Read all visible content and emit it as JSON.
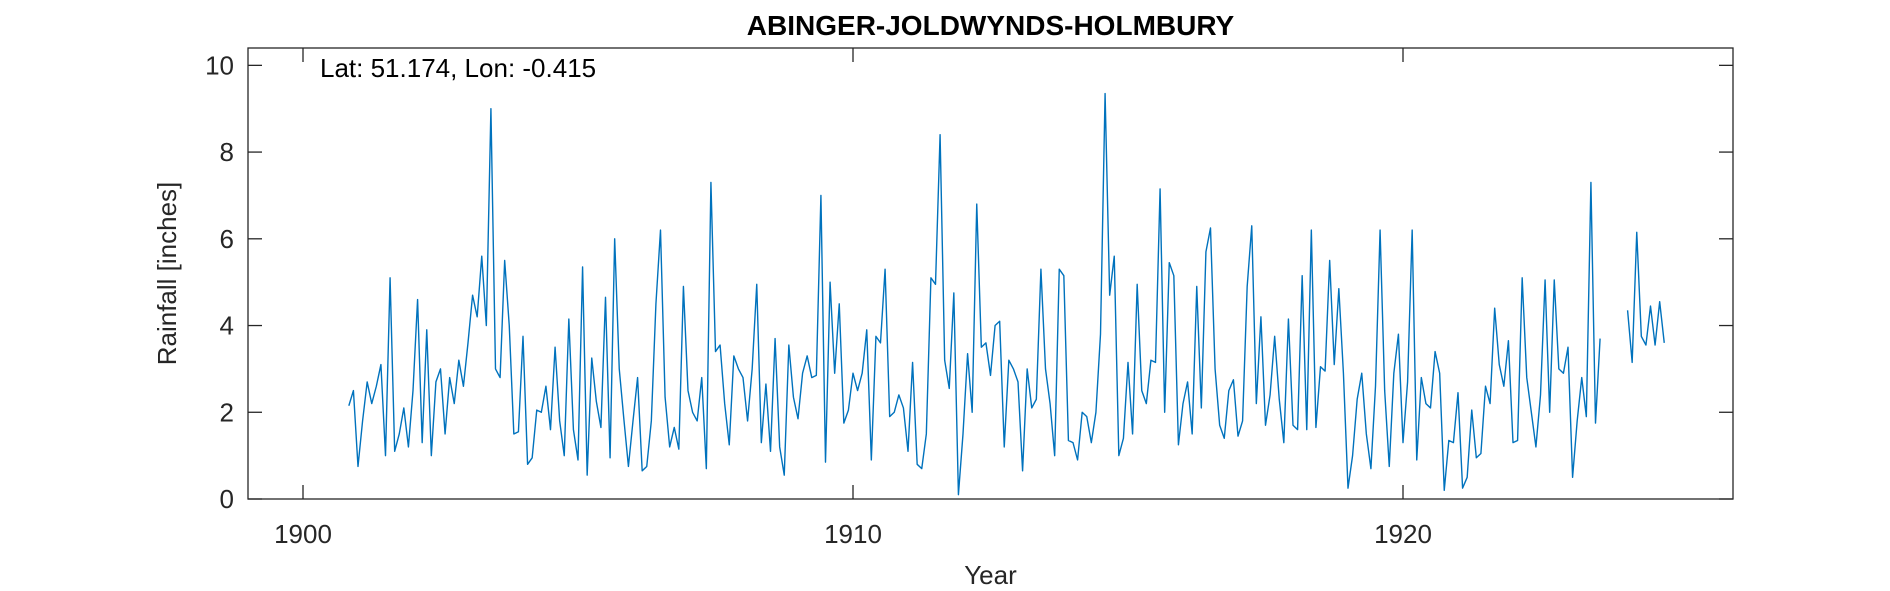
{
  "chart_data": {
    "type": "line",
    "title": "ABINGER-JOLDWYNDS-HOLMBURY",
    "xlabel": "Year",
    "ylabel": "Rainfall [inches]",
    "annotation": "Lat: 51.174, Lon: -0.415",
    "xlim": [
      1899,
      1926
    ],
    "ylim": [
      0,
      10.4
    ],
    "xticks": [
      1900,
      1910,
      1920
    ],
    "yticks": [
      0,
      2,
      4,
      6,
      8,
      10
    ],
    "grid": false,
    "line_color": "#0072BD",
    "series": [
      {
        "start_year": 1900,
        "start_month": 11,
        "values": [
          2.15,
          2.5,
          0.75,
          1.8,
          2.7,
          2.2,
          2.6,
          3.1,
          1.0,
          5.1,
          1.1,
          1.5,
          2.1,
          1.2,
          2.5,
          4.6,
          1.3,
          3.9,
          1.0,
          2.7,
          3.0,
          1.5,
          2.8,
          2.2,
          3.2,
          2.6,
          3.6,
          4.7,
          4.2,
          5.6,
          4.0,
          9.0,
          3.0,
          2.8,
          5.5,
          4.0,
          1.5,
          1.55,
          3.75,
          0.8,
          0.95,
          2.05,
          2.0,
          2.6,
          1.6,
          3.5,
          1.8,
          1.0,
          4.15,
          1.6,
          0.9,
          5.35,
          0.55,
          3.25,
          2.25,
          1.65,
          4.65,
          0.95,
          6.0,
          3.0,
          1.85,
          0.75,
          1.8,
          2.8,
          0.65,
          0.75,
          1.8,
          4.5,
          6.2,
          2.35,
          1.2,
          1.65,
          1.15,
          4.9,
          2.5,
          2.0,
          1.8,
          2.8,
          0.7,
          7.3,
          3.4,
          3.55,
          2.2,
          1.25,
          3.3,
          3.0,
          2.8,
          1.8,
          3.0,
          4.95,
          1.3,
          2.65,
          1.1,
          3.7,
          1.2,
          0.55,
          3.55,
          2.35,
          1.85,
          2.9,
          3.3,
          2.8,
          2.85,
          7.0,
          0.85,
          5.0,
          2.9,
          4.5,
          1.75,
          2.05,
          2.9,
          2.5,
          2.9,
          3.9,
          0.9,
          3.75,
          3.6,
          5.3,
          1.9,
          2.0,
          2.4,
          2.1,
          1.1,
          3.15,
          0.8,
          0.7,
          1.5,
          5.1,
          4.95,
          8.4,
          3.2,
          2.55,
          4.75,
          0.1,
          1.5,
          3.35,
          2.0,
          6.8,
          3.5,
          3.6,
          2.85,
          4.0,
          4.1,
          1.2,
          3.2,
          3.0,
          2.7,
          0.65,
          3.0,
          2.1,
          2.3,
          5.3,
          3.0,
          2.2,
          1.0,
          5.3,
          5.15,
          1.35,
          1.3,
          0.9,
          2.0,
          1.9,
          1.3,
          2.0,
          3.8,
          9.35,
          4.7,
          5.6,
          1.0,
          1.4,
          3.15,
          1.5,
          4.95,
          2.5,
          2.2,
          3.2,
          3.15,
          7.15,
          2.0,
          5.45,
          5.15,
          1.25,
          2.2,
          2.7,
          1.5,
          4.9,
          2.1,
          5.7,
          6.25,
          3.0,
          1.7,
          1.4,
          2.5,
          2.75,
          1.45,
          1.8,
          4.9,
          6.3,
          2.2,
          4.2,
          1.7,
          2.4,
          3.75,
          2.3,
          1.3,
          4.15,
          1.7,
          1.6,
          5.15,
          1.6,
          6.2,
          1.65,
          3.05,
          2.95,
          5.5,
          3.1,
          4.85,
          2.9,
          0.25,
          1.0,
          2.3,
          2.9,
          1.5,
          0.7,
          2.6,
          6.2,
          2.5,
          0.75,
          2.9,
          3.8,
          1.3,
          2.7,
          6.2,
          0.9,
          2.8,
          2.2,
          2.1,
          3.4,
          2.9,
          0.2,
          1.35,
          1.3,
          2.45,
          0.25,
          0.5,
          2.05,
          0.95,
          1.05,
          2.6,
          2.2,
          4.4,
          3.1,
          2.6,
          3.65,
          1.3,
          1.35,
          5.1,
          2.8,
          2.0,
          1.2,
          2.4,
          5.05,
          2.0,
          5.05,
          3.0,
          2.9,
          3.5,
          0.5,
          1.8,
          2.8,
          1.9,
          7.3,
          1.75,
          3.7,
          null,
          null,
          null,
          null,
          null,
          4.35,
          3.15,
          6.15,
          3.75,
          3.55,
          4.45,
          3.55,
          4.55,
          3.6
        ]
      }
    ]
  }
}
